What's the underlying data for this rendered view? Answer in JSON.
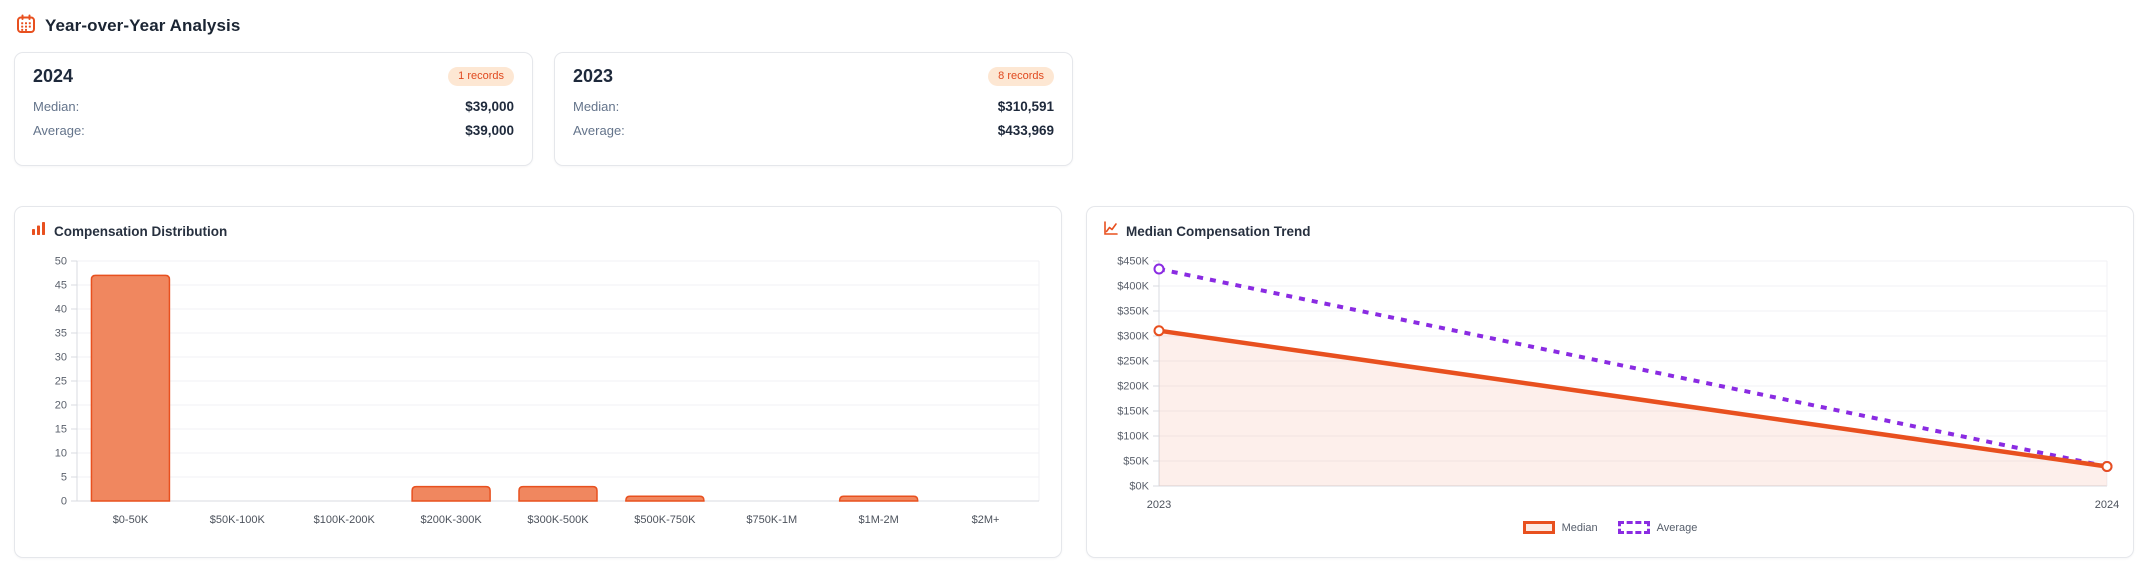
{
  "header": {
    "title": "Year-over-Year Analysis",
    "icon": "calendar-icon"
  },
  "year_cards": [
    {
      "year": "2024",
      "records_badge": "1 records",
      "median_label": "Median:",
      "median_value": "$39,000",
      "average_label": "Average:",
      "average_value": "$39,000"
    },
    {
      "year": "2023",
      "records_badge": "8 records",
      "median_label": "Median:",
      "median_value": "$310,591",
      "average_label": "Average:",
      "average_value": "$433,969"
    }
  ],
  "colors": {
    "accent": "#e8501f",
    "bar_fill": "#f0875f",
    "area_fill": "rgba(232,80,31,0.09)",
    "purple": "#8a2be2",
    "badge_bg": "#fde7d3",
    "card_border": "#e5e7eb",
    "grid": "#f2f2f4",
    "axis": "#d8dbe0",
    "tick_text": "#5b616c",
    "category_text": "#4c525c"
  },
  "chart_data": [
    {
      "type": "bar",
      "title": "Compensation Distribution",
      "icon": "bar-chart-icon",
      "categories": [
        "$0-50K",
        "$50K-100K",
        "$100K-200K",
        "$200K-300K",
        "$300K-500K",
        "$500K-750K",
        "$750K-1M",
        "$1M-2M",
        "$2M+"
      ],
      "values": [
        47,
        0,
        0,
        3,
        3,
        1,
        0,
        1,
        0
      ],
      "xlabel": "",
      "ylabel": "",
      "ylim": [
        0,
        50
      ],
      "yticks": [
        0,
        5,
        10,
        15,
        20,
        25,
        30,
        35,
        40,
        45,
        50
      ],
      "grid": true,
      "legend_position": "none"
    },
    {
      "type": "line",
      "title": "Median Compensation Trend",
      "icon": "line-chart-icon",
      "x": [
        "2023",
        "2024"
      ],
      "series": [
        {
          "name": "Median",
          "values": [
            310591,
            39000
          ],
          "style": "solid",
          "color": "#e8501f",
          "area": true
        },
        {
          "name": "Average",
          "values": [
            433969,
            39000
          ],
          "style": "dashed",
          "color": "#8a2be2",
          "area": false
        }
      ],
      "xlabel": "",
      "ylabel": "",
      "ylim": [
        0,
        450000
      ],
      "ytick_values": [
        0,
        50000,
        100000,
        150000,
        200000,
        250000,
        300000,
        350000,
        400000,
        450000
      ],
      "ytick_labels": [
        "$0K",
        "$50K",
        "$100K",
        "$150K",
        "$200K",
        "$250K",
        "$300K",
        "$350K",
        "$400K",
        "$450K"
      ],
      "grid": true,
      "legend_position": "bottom"
    }
  ]
}
